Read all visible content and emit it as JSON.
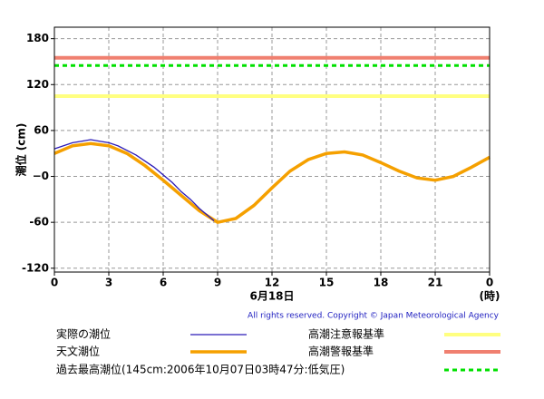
{
  "chart_data": {
    "type": "line",
    "xlabel": "6月18日",
    "xunit": "(時)",
    "ylabel": "潮位 (cm)",
    "copyright": "All rights reserved. Copyright © Japan Meteorological Agency",
    "xlim": [
      0,
      24
    ],
    "xticks": [
      0,
      3,
      6,
      9,
      12,
      15,
      18,
      21,
      {
        "value": 24,
        "label": "0"
      }
    ],
    "ylim": [
      -125,
      195
    ],
    "yticks": [
      180,
      120,
      60,
      {
        "value": 0,
        "label": "−0"
      },
      -60,
      -120
    ],
    "grid": true,
    "series": [
      {
        "name": "実際の潮位",
        "color": "#2a1ab8",
        "x": [
          0,
          0.5,
          1,
          1.5,
          2,
          2.5,
          3,
          3.5,
          4,
          4.5,
          5,
          5.5,
          6,
          6.5,
          7,
          7.5,
          8,
          8.5,
          8.8
        ],
        "values": [
          36,
          40,
          44,
          46,
          48,
          46,
          44,
          40,
          34,
          28,
          20,
          12,
          2,
          -8,
          -20,
          -30,
          -42,
          -52,
          -58
        ]
      },
      {
        "name": "天文潮位",
        "color": "#f5a000",
        "x": [
          0,
          1,
          2,
          3,
          4,
          5,
          6,
          7,
          8,
          9,
          10,
          11,
          12,
          13,
          14,
          15,
          16,
          17,
          18,
          19,
          20,
          21,
          22,
          23,
          24
        ],
        "values": [
          30,
          40,
          43,
          40,
          30,
          14,
          -5,
          -25,
          -45,
          -60,
          -55,
          -38,
          -15,
          7,
          22,
          30,
          32,
          28,
          18,
          7,
          -2,
          -5,
          0,
          12,
          25
        ]
      }
    ],
    "reference_lines": [
      {
        "name": "高潮注意報基準",
        "color": "#ffff80",
        "value": 105
      },
      {
        "name": "高潮警報基準",
        "color": "#f08070",
        "value": 155
      },
      {
        "name": "過去最高潮位(145cm:2006年10月07日03時47分:低気圧)",
        "color": "#00e000",
        "value": 145,
        "dashed": true
      }
    ]
  }
}
